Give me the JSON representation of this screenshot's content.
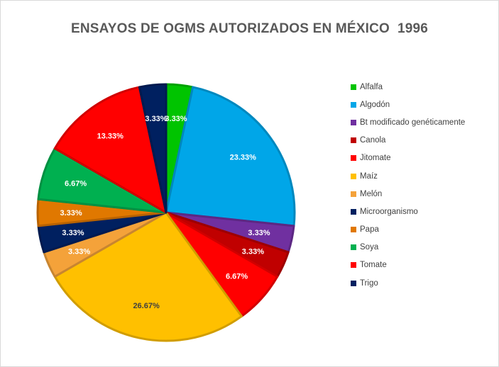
{
  "chart_data": {
    "type": "pie",
    "title": "ENSAYOS DE OGMS AUTORIZADOS EN MÉXICO  1996",
    "legend_position": "right",
    "slices": [
      {
        "label": "Alfalfa",
        "value": 3.33,
        "display": "3.33%",
        "color": "#00c400",
        "label_color": "#ffffff"
      },
      {
        "label": "Algodón",
        "value": 23.33,
        "display": "23.33%",
        "color": "#00a6e8",
        "label_color": "#ffffff"
      },
      {
        "label": "Bt modificado genéticamente",
        "value": 3.33,
        "display": "3.33%",
        "color": "#7030a0",
        "label_color": "#ffffff"
      },
      {
        "label": "Canola",
        "value": 3.33,
        "display": "3.33%",
        "color": "#c00000",
        "label_color": "#ffffff"
      },
      {
        "label": "Jitomate",
        "value": 6.67,
        "display": "6.67%",
        "color": "#ff0000",
        "label_color": "#ffffff"
      },
      {
        "label": "Maíz",
        "value": 26.67,
        "display": "26.67%",
        "color": "#ffc000",
        "label_color": "#404040"
      },
      {
        "label": "Melón",
        "value": 3.33,
        "display": "3.33%",
        "color": "#f4a23a",
        "label_color": "#ffffff"
      },
      {
        "label": "Microorganismo",
        "value": 3.33,
        "display": "3.33%",
        "color": "#002060",
        "label_color": "#ffffff"
      },
      {
        "label": "Papa",
        "value": 3.33,
        "display": "3.33%",
        "color": "#e07800",
        "label_color": "#ffffff"
      },
      {
        "label": "Soya",
        "value": 6.67,
        "display": "6.67%",
        "color": "#00b050",
        "label_color": "#ffffff"
      },
      {
        "label": "Tomate",
        "value": 13.33,
        "display": "13.33%",
        "color": "#ff0000",
        "label_color": "#ffffff"
      },
      {
        "label": "Trigo",
        "value": 3.33,
        "display": "3.33%",
        "color": "#002060",
        "label_color": "#ffffff"
      }
    ]
  }
}
